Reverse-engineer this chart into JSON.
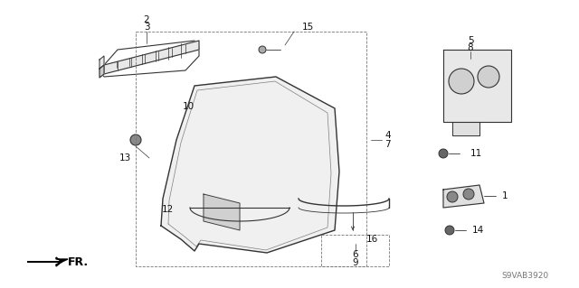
{
  "bg_color": "#ffffff",
  "diagram_code": "S9VAB3920",
  "lc": "#333333",
  "tc": "#111111",
  "fs": 7.5,
  "figsize": [
    6.4,
    3.19
  ],
  "dpi": 100
}
